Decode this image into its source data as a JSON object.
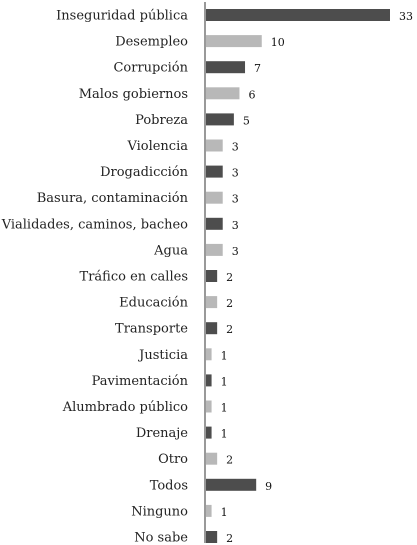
{
  "chart_data": {
    "type": "bar",
    "orientation": "horizontal",
    "categories": [
      "Inseguridad pública",
      "Desempleo",
      "Corrupción",
      "Malos gobiernos",
      "Pobreza",
      "Violencia",
      "Drogadicción",
      "Basura, contaminación",
      "Vialidades, caminos, bacheo",
      "Agua",
      "Tráfico en calles",
      "Educación",
      "Transporte",
      "Justicia",
      "Pavimentación",
      "Alumbrado público",
      "Drenaje",
      "Otro",
      "Todos",
      "Ninguno",
      "No sabe"
    ],
    "values": [
      33,
      10,
      7,
      6,
      5,
      3,
      3,
      3,
      3,
      3,
      2,
      2,
      2,
      1,
      1,
      1,
      1,
      2,
      9,
      1,
      2
    ],
    "value_labels": [
      "33",
      "10",
      "7",
      "6",
      "5",
      "3",
      "3",
      "3",
      "3",
      "3",
      "2",
      "2",
      "2",
      "1",
      "1",
      "1",
      "1",
      "2",
      "9",
      "1",
      "2"
    ],
    "bar_colors": [
      "#4d4d4d",
      "#b8b8b8",
      "#4d4d4d",
      "#b8b8b8",
      "#4d4d4d",
      "#b8b8b8",
      "#4d4d4d",
      "#b8b8b8",
      "#4d4d4d",
      "#b8b8b8",
      "#4d4d4d",
      "#b8b8b8",
      "#4d4d4d",
      "#b8b8b8",
      "#4d4d4d",
      "#b8b8b8",
      "#4d4d4d",
      "#b8b8b8",
      "#4d4d4d",
      "#b8b8b8",
      "#4d4d4d"
    ],
    "title": "",
    "xlabel": "",
    "ylabel": "",
    "xlim": [
      0,
      33
    ],
    "grid": false,
    "legend": "none"
  }
}
